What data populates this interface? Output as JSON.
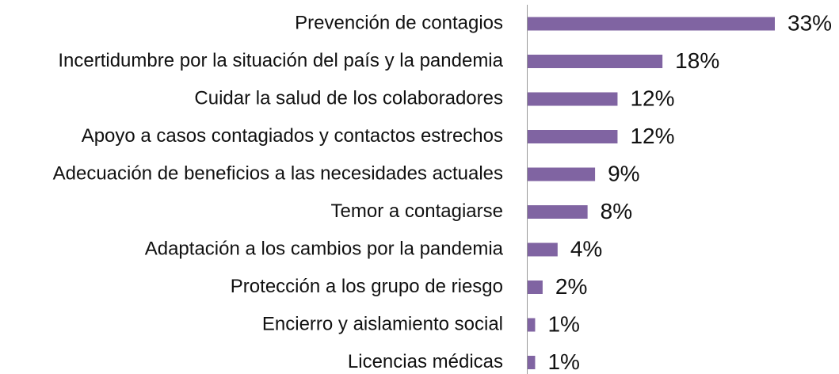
{
  "chart_data": {
    "type": "bar",
    "orientation": "horizontal",
    "color": "#8064a2",
    "categories": [
      "Prevención de contagios",
      "Incertidumbre por la situación del país y la pandemia",
      "Cuidar la salud de los colaboradores",
      "Apoyo a casos contagiados y contactos estrechos",
      "Adecuación de beneficios a las necesidades actuales",
      "Temor a contagiarse",
      "Adaptación a los cambios por la pandemia",
      "Protección a los grupo de riesgo",
      "Encierro y aislamiento social",
      "Licencias médicas"
    ],
    "values": [
      33,
      18,
      12,
      12,
      9,
      8,
      4,
      2,
      1,
      1
    ],
    "value_labels": [
      "33%",
      "18%",
      "12%",
      "12%",
      "9%",
      "8%",
      "4%",
      "2%",
      "1%",
      "1%"
    ]
  }
}
